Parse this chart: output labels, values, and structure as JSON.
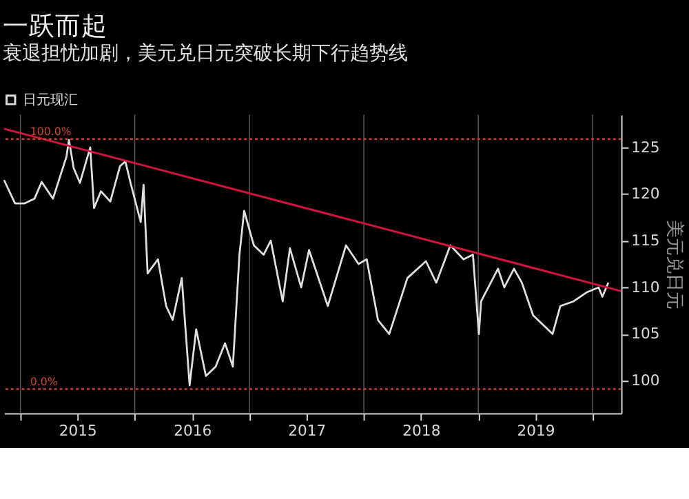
{
  "chart_data": {
    "type": "line",
    "title": "一跃而起",
    "subtitle": "衰退担忧加剧，美元兑日元突破长期下行趋势线",
    "ylabel": "美元兑日元",
    "xlim": [
      "2014-11-10",
      "2020-04-01"
    ],
    "xticks": [
      {
        "value": "2015-01-01",
        "label": null
      },
      {
        "value": "2015-07-02",
        "label": "2015"
      },
      {
        "value": "2016-01-01",
        "label": null
      },
      {
        "value": "2016-07-02",
        "label": "2016"
      },
      {
        "value": "2017-01-01",
        "label": null
      },
      {
        "value": "2017-07-02",
        "label": "2017"
      },
      {
        "value": "2018-01-01",
        "label": null
      },
      {
        "value": "2018-07-02",
        "label": "2018"
      },
      {
        "value": "2019-01-01",
        "label": null
      },
      {
        "value": "2019-07-02",
        "label": "2019"
      },
      {
        "value": "2020-01-01",
        "label": null
      }
    ],
    "ylim": [
      96.5,
      128.5
    ],
    "yticks": [
      100,
      105,
      110,
      115,
      120,
      125
    ],
    "grid": "x",
    "legend": "top left",
    "series": [
      {
        "name": "日元现汇",
        "color": "#e0e0e0",
        "x": [
          "2014-11-10",
          "2014-12-15",
          "2015-01-15",
          "2015-02-15",
          "2015-03-10",
          "2015-04-15",
          "2015-05-28",
          "2015-06-05",
          "2015-06-20",
          "2015-07-10",
          "2015-08-12",
          "2015-08-24",
          "2015-09-15",
          "2015-10-15",
          "2015-11-15",
          "2015-12-02",
          "2015-12-20",
          "2016-01-20",
          "2016-01-29",
          "2016-02-11",
          "2016-03-15",
          "2016-04-10",
          "2016-05-01",
          "2016-05-30",
          "2016-06-24",
          "2016-07-15",
          "2016-08-15",
          "2016-09-15",
          "2016-10-15",
          "2016-11-09",
          "2016-11-30",
          "2016-12-15",
          "2017-01-15",
          "2017-02-15",
          "2017-03-10",
          "2017-04-17",
          "2017-05-10",
          "2017-06-15",
          "2017-07-10",
          "2017-09-08",
          "2017-11-05",
          "2017-12-15",
          "2018-01-10",
          "2018-02-15",
          "2018-03-23",
          "2018-05-20",
          "2018-07-18",
          "2018-08-20",
          "2018-10-04",
          "2018-11-15",
          "2018-12-15",
          "2019-01-03",
          "2019-01-10",
          "2019-03-05",
          "2019-03-25",
          "2019-04-25",
          "2019-05-20",
          "2019-06-25",
          "2019-08-26",
          "2019-09-20",
          "2019-11-01",
          "2019-12-15",
          "2020-01-20",
          "2020-02-01",
          "2020-02-20"
        ],
        "values": [
          121.5,
          119.0,
          119.0,
          119.5,
          121.3,
          119.5,
          124.0,
          125.8,
          122.8,
          121.2,
          125.0,
          118.5,
          120.3,
          119.2,
          123.0,
          123.5,
          121.0,
          117.0,
          121.0,
          111.5,
          113.0,
          108.0,
          106.5,
          111.0,
          99.5,
          105.5,
          100.5,
          101.5,
          104.0,
          101.5,
          113.5,
          118.2,
          114.5,
          113.5,
          115.0,
          108.5,
          114.2,
          110.0,
          114.0,
          108.0,
          114.5,
          112.5,
          113.0,
          106.5,
          105.0,
          111.0,
          112.8,
          110.5,
          114.5,
          113.0,
          113.5,
          105.0,
          108.5,
          112.0,
          110.0,
          112.0,
          110.5,
          107.0,
          105.0,
          108.0,
          108.5,
          109.5,
          110.0,
          109.0,
          110.5
        ]
      },
      {
        "type": "line",
        "color": "#d0143c",
        "x": [
          "2014-11-10",
          "2020-04-01"
        ],
        "values": [
          127.0,
          109.6
        ]
      }
    ],
    "ref_lines": [
      {
        "axis": "y",
        "value": 125.9,
        "color": "#c8462a",
        "line_style": "dotted"
      },
      {
        "axis": "y",
        "value": 99.1,
        "color": "#c8462a",
        "line_style": "dotted"
      }
    ],
    "annotations": [
      {
        "text": "100.0%",
        "x": "2015-02-01",
        "y": 125.9
      },
      {
        "text": "0.0%",
        "x": "2015-02-01",
        "y": 99.1
      }
    ]
  }
}
